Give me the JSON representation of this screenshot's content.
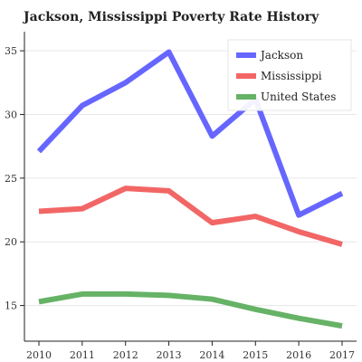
{
  "chart_data": {
    "type": "line",
    "title": "Jackson, Mississippi Poverty Rate History",
    "xlabel": "",
    "ylabel": "",
    "x": [
      2010,
      2011,
      2012,
      2013,
      2014,
      2015,
      2016,
      2017
    ],
    "ylim": [
      12.2,
      36.5
    ],
    "yticks": [
      15,
      20,
      25,
      30,
      35
    ],
    "grid": "horizontal",
    "legend_position": "top-right",
    "series": [
      {
        "name": "Jackson",
        "color": "#6666ff",
        "values": [
          27.1,
          30.7,
          32.5,
          34.9,
          28.3,
          31.2,
          22.1,
          23.8
        ]
      },
      {
        "name": "Mississippi",
        "color": "#f26666",
        "values": [
          22.4,
          22.6,
          24.2,
          24.0,
          21.5,
          22.0,
          20.8,
          19.8
        ]
      },
      {
        "name": "United States",
        "color": "#66b266",
        "values": [
          15.3,
          15.9,
          15.9,
          15.8,
          15.5,
          14.7,
          14.0,
          13.4
        ]
      }
    ]
  }
}
